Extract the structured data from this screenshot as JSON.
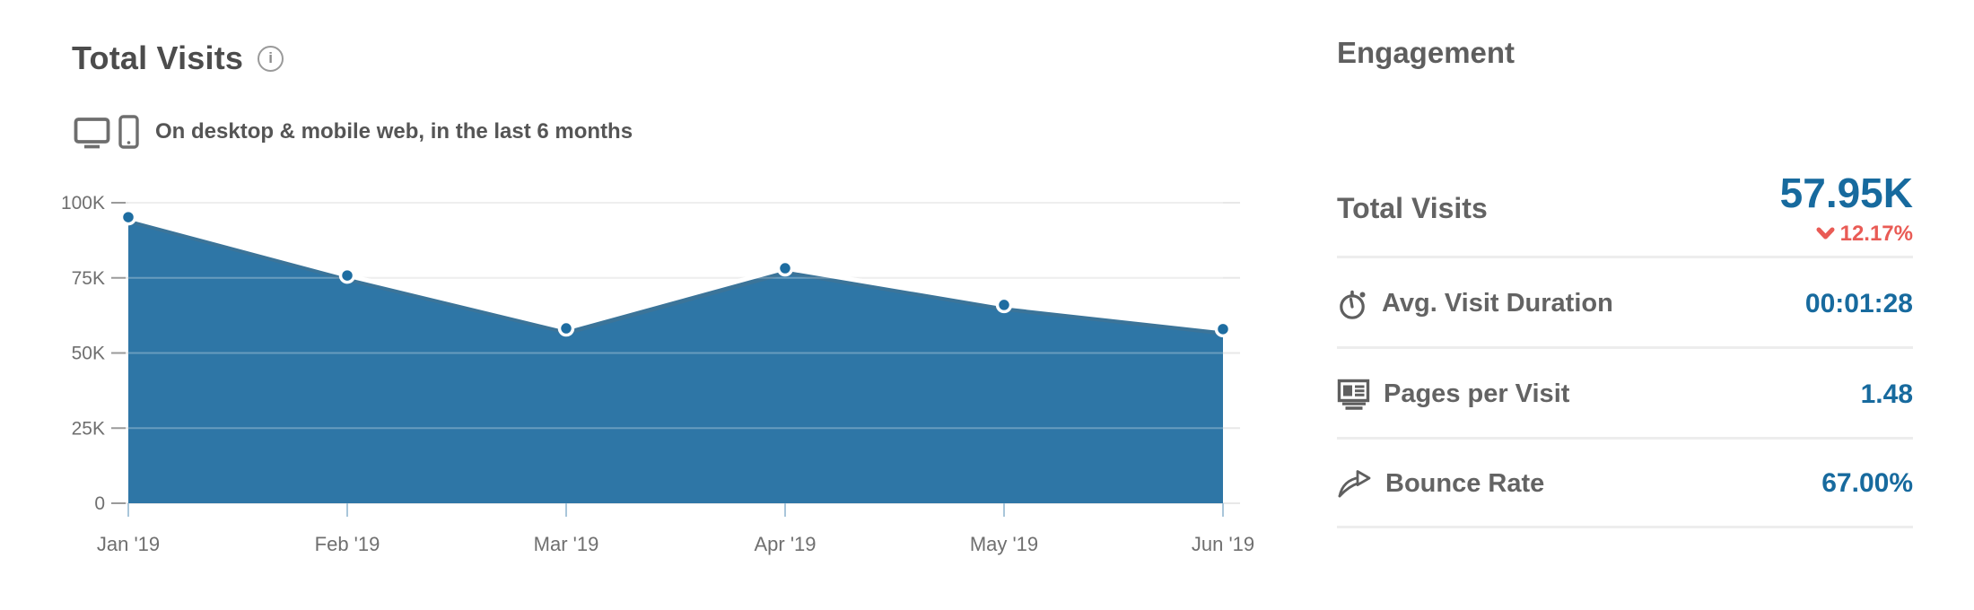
{
  "colors": {
    "chart_fill_blue": "#2e76a6",
    "point_blue": "#1e6da1",
    "value_blue": "#176a9e",
    "negative_red": "#e95b55",
    "gridline_gray": "#e8e8e8",
    "axis_text_gray": "#6f6f6f"
  },
  "chart": {
    "title": "Total Visits",
    "info_icon_glyph": "i",
    "subtitle": "On desktop & mobile web, in the last 6 months"
  },
  "chart_data": {
    "type": "area",
    "title": "Total Visits",
    "x": [
      "Jan '19",
      "Feb '19",
      "Mar '19",
      "Apr '19",
      "May '19",
      "Jun '19"
    ],
    "values": [
      95200,
      75800,
      58200,
      78200,
      66000,
      57950
    ],
    "xlabel": "",
    "ylabel": "",
    "ylim": [
      0,
      100000
    ],
    "yticks": [
      0,
      25000,
      50000,
      75000,
      100000
    ],
    "ytick_labels": [
      "0",
      "25K",
      "50K",
      "75K",
      "100K"
    ],
    "grid": true,
    "legend": false,
    "series_color": "#2e76a6",
    "line_color": "#ffffff"
  },
  "engagement": {
    "title": "Engagement",
    "rows": [
      {
        "label": "Total Visits",
        "value": "57.95K",
        "change": "12.17%",
        "change_direction": "down"
      },
      {
        "label": "Avg. Visit Duration",
        "value": "00:01:28",
        "icon": "stopwatch-icon"
      },
      {
        "label": "Pages per Visit",
        "value": "1.48",
        "icon": "pages-icon"
      },
      {
        "label": "Bounce Rate",
        "value": "67.00%",
        "icon": "bounce-arrow-icon"
      }
    ]
  }
}
